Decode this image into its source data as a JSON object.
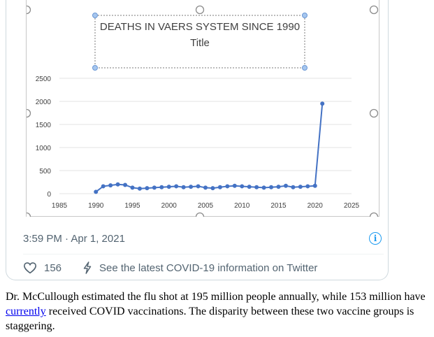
{
  "chart_data": {
    "type": "line",
    "title": "DEATHS IN VAERS SYSTEM SINCE 1990",
    "subtitle": "Title",
    "xlabel": "",
    "ylabel": "",
    "xlim": [
      1985,
      2025
    ],
    "ylim": [
      0,
      2500
    ],
    "x_ticks": [
      1985,
      1990,
      1995,
      2000,
      2005,
      2010,
      2015,
      2020,
      2025
    ],
    "y_ticks": [
      0,
      500,
      1000,
      1500,
      2000,
      2500
    ],
    "grid": "horizontal",
    "series": [
      {
        "color": "#4472c4",
        "x": [
          1990,
          1991,
          1992,
          1993,
          1994,
          1995,
          1996,
          1997,
          1998,
          1999,
          2000,
          2001,
          2002,
          2003,
          2004,
          2005,
          2006,
          2007,
          2008,
          2009,
          2010,
          2011,
          2012,
          2013,
          2014,
          2015,
          2016,
          2017,
          2018,
          2019,
          2020,
          2021
        ],
        "values": [
          40,
          160,
          180,
          200,
          190,
          130,
          110,
          120,
          130,
          140,
          150,
          160,
          140,
          150,
          160,
          130,
          120,
          140,
          160,
          170,
          160,
          150,
          140,
          130,
          140,
          150,
          170,
          140,
          150,
          160,
          170,
          1950
        ]
      }
    ]
  },
  "tweet": {
    "timestamp": "3:59 PM · Apr 1, 2021",
    "info_icon": "info-icon",
    "like_icon": "heart-icon",
    "like_count": "156",
    "covid_icon": "bolt-icon",
    "covid_label": "See the latest COVID-19 information on Twitter"
  },
  "article": {
    "text_before": "Dr. McCullough estimated the flu shot at 195 million people annually, while 153 million have ",
    "link_text": "currently",
    "text_after": " received COVID vaccinations.  The disparity between these two vaccine groups is staggering."
  },
  "colors": {
    "series": "#4472c4",
    "link": "#0000ee",
    "twitter_blue": "#1d9bf0",
    "muted": "#536471"
  }
}
